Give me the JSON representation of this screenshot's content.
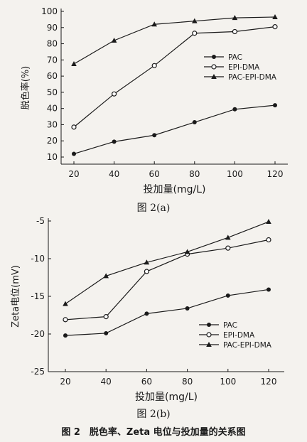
{
  "chart_data": [
    {
      "type": "line",
      "ylabel": "脱色率(%)",
      "xlabel": "投加量(mg/L)",
      "caption": "图 2(a)",
      "x": [
        20,
        40,
        60,
        80,
        100,
        120
      ],
      "xticks": [
        "20",
        "40",
        "60",
        "80",
        "100",
        "120"
      ],
      "ylim": [
        10,
        100
      ],
      "yticks": [
        "10",
        "20",
        "30",
        "40",
        "50",
        "60",
        "70",
        "80",
        "90",
        "100"
      ],
      "legend_position": "center-right",
      "series": [
        {
          "name": "PAC",
          "marker": "filled-circle",
          "values": [
            12,
            19.5,
            23.5,
            31.5,
            39.5,
            42
          ]
        },
        {
          "name": "EPI-DMA",
          "marker": "open-circle",
          "values": [
            28.5,
            49,
            66.5,
            86.5,
            87.5,
            90.5
          ]
        },
        {
          "name": "PAC-EPI-DMA",
          "marker": "filled-triangle",
          "values": [
            67.5,
            82,
            92,
            94,
            96,
            96.5
          ]
        }
      ]
    },
    {
      "type": "line",
      "ylabel": "Zeta电位(mV)",
      "xlabel": "投加量(mg/L)",
      "caption": "图 2(b)",
      "x": [
        20,
        40,
        60,
        80,
        100,
        120
      ],
      "xticks": [
        "20",
        "40",
        "60",
        "80",
        "100",
        "120"
      ],
      "ylim": [
        -25,
        -5
      ],
      "yticks": [
        "-5",
        "-10",
        "-15",
        "-20",
        "-25"
      ],
      "legend_position": "bottom-right",
      "series": [
        {
          "name": "PAC",
          "marker": "filled-circle",
          "values": [
            -20.2,
            -19.9,
            -17.3,
            -16.6,
            -14.9,
            -14.1
          ]
        },
        {
          "name": "EPI-DMA",
          "marker": "open-circle",
          "values": [
            -18.1,
            -17.7,
            -11.7,
            -9.4,
            -8.6,
            -7.5
          ]
        },
        {
          "name": "PAC-EPI-DMA",
          "marker": "filled-triangle",
          "values": [
            -16,
            -12.3,
            -10.5,
            -9.1,
            -7.2,
            -5.1
          ]
        }
      ]
    }
  ],
  "figure_caption": "图 2　脱色率、Zeta 电位与投加量的关系图"
}
